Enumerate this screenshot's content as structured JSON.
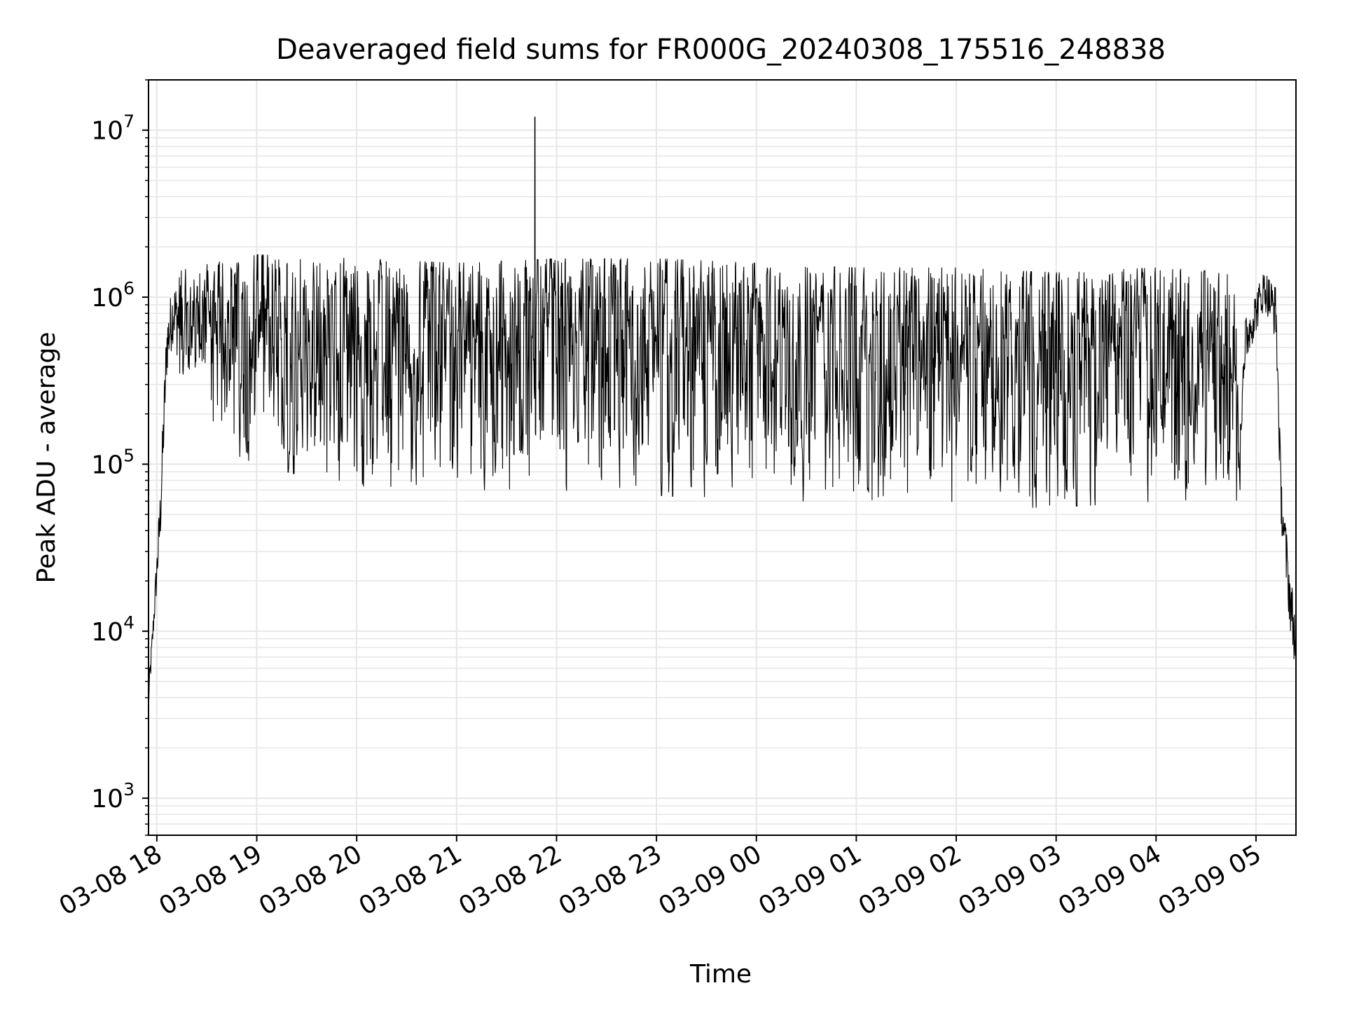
{
  "chart_data": {
    "type": "line",
    "title": "Deaveraged field sums for FR000G_20240308_175516_248838",
    "xlabel": "Time",
    "ylabel": "Peak ADU - average",
    "yscale": "log",
    "ylim": [
      600,
      20000000
    ],
    "xlim": [
      "2024-03-08 17:55",
      "2024-03-09 05:24"
    ],
    "grid": true,
    "line_color": "#000000",
    "grid_color": "#e6e6e6",
    "x_ticks": [
      {
        "value": "2024-03-08 18:00",
        "label": "03-08 18"
      },
      {
        "value": "2024-03-08 19:00",
        "label": "03-08 19"
      },
      {
        "value": "2024-03-08 20:00",
        "label": "03-08 20"
      },
      {
        "value": "2024-03-08 21:00",
        "label": "03-08 21"
      },
      {
        "value": "2024-03-08 22:00",
        "label": "03-08 22"
      },
      {
        "value": "2024-03-08 23:00",
        "label": "03-08 23"
      },
      {
        "value": "2024-03-09 00:00",
        "label": "03-09 00"
      },
      {
        "value": "2024-03-09 01:00",
        "label": "03-09 01"
      },
      {
        "value": "2024-03-09 02:00",
        "label": "03-09 02"
      },
      {
        "value": "2024-03-09 03:00",
        "label": "03-09 03"
      },
      {
        "value": "2024-03-09 04:00",
        "label": "03-09 04"
      },
      {
        "value": "2024-03-09 05:00",
        "label": "03-09 05"
      }
    ],
    "y_ticks": [
      {
        "value": 1000,
        "base": "10",
        "exp": "3"
      },
      {
        "value": 10000,
        "base": "10",
        "exp": "4"
      },
      {
        "value": 100000,
        "base": "10",
        "exp": "5"
      },
      {
        "value": 1000000,
        "base": "10",
        "exp": "6"
      },
      {
        "value": 10000000,
        "base": "10",
        "exp": "7"
      }
    ],
    "envelope": [
      {
        "t": "2024-03-08 17:55",
        "low": 3000,
        "high": 5000
      },
      {
        "t": "2024-03-08 17:58",
        "low": 9000,
        "high": 14000
      },
      {
        "t": "2024-03-08 18:02",
        "low": 28000,
        "high": 80000
      },
      {
        "t": "2024-03-08 18:06",
        "low": 300000,
        "high": 900000
      },
      {
        "t": "2024-03-08 18:10",
        "low": 500000,
        "high": 1400000
      },
      {
        "t": "2024-03-08 18:20",
        "low": 150000,
        "high": 1500000
      },
      {
        "t": "2024-03-08 19:00",
        "low": 100000,
        "high": 1800000
      },
      {
        "t": "2024-03-08 20:00",
        "low": 70000,
        "high": 1700000
      },
      {
        "t": "2024-03-08 21:00",
        "low": 70000,
        "high": 1600000
      },
      {
        "t": "2024-03-08 22:00",
        "low": 70000,
        "high": 1700000
      },
      {
        "t": "2024-03-08 23:00",
        "low": 65000,
        "high": 1700000
      },
      {
        "t": "2024-03-09 00:00",
        "low": 60000,
        "high": 1600000
      },
      {
        "t": "2024-03-09 01:00",
        "low": 60000,
        "high": 1500000
      },
      {
        "t": "2024-03-09 02:00",
        "low": 55000,
        "high": 1500000
      },
      {
        "t": "2024-03-09 03:00",
        "low": 55000,
        "high": 1400000
      },
      {
        "t": "2024-03-09 04:00",
        "low": 60000,
        "high": 1500000
      },
      {
        "t": "2024-03-09 04:50",
        "low": 60000,
        "high": 1400000
      },
      {
        "t": "2024-03-09 04:55",
        "low": 400000,
        "high": 900000
      },
      {
        "t": "2024-03-09 05:05",
        "low": 800000,
        "high": 1600000
      },
      {
        "t": "2024-03-09 05:12",
        "low": 500000,
        "high": 1300000
      },
      {
        "t": "2024-03-09 05:15",
        "low": 40000,
        "high": 100000
      },
      {
        "t": "2024-03-09 05:20",
        "low": 10000,
        "high": 30000
      },
      {
        "t": "2024-03-09 05:24",
        "low": 5000,
        "high": 13000
      }
    ],
    "spikes": [
      {
        "t": "2024-03-08 21:47",
        "value": 12000000
      }
    ]
  }
}
